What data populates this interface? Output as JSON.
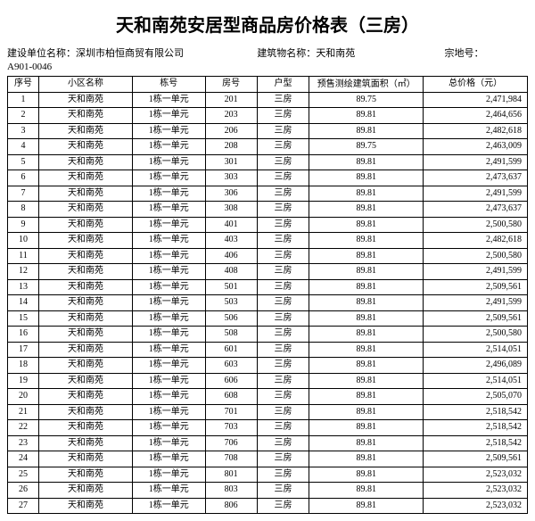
{
  "title": "天和南苑安居型商品房价格表（三房）",
  "meta": {
    "dev_label": "建设单位名称：",
    "dev_value": "深圳市柏恒商贸有限公司",
    "bldg_label": "建筑物名称：",
    "bldg_value": "天和南苑",
    "parcel_label": "宗地号：",
    "parcel_code": "A901-0046"
  },
  "columns": {
    "idx": "序号",
    "community": "小区名称",
    "building": "栋号",
    "room": "房号",
    "type": "户型",
    "area": "预售测绘建筑面积（㎡）",
    "price": "总价格（元）"
  },
  "rows": [
    {
      "idx": "1",
      "community": "天和南苑",
      "building": "1栋一单元",
      "room": "201",
      "type": "三房",
      "area": "89.75",
      "price": "2,471,984"
    },
    {
      "idx": "2",
      "community": "天和南苑",
      "building": "1栋一单元",
      "room": "203",
      "type": "三房",
      "area": "89.81",
      "price": "2,464,656"
    },
    {
      "idx": "3",
      "community": "天和南苑",
      "building": "1栋一单元",
      "room": "206",
      "type": "三房",
      "area": "89.81",
      "price": "2,482,618"
    },
    {
      "idx": "4",
      "community": "天和南苑",
      "building": "1栋一单元",
      "room": "208",
      "type": "三房",
      "area": "89.75",
      "price": "2,463,009"
    },
    {
      "idx": "5",
      "community": "天和南苑",
      "building": "1栋一单元",
      "room": "301",
      "type": "三房",
      "area": "89.81",
      "price": "2,491,599"
    },
    {
      "idx": "6",
      "community": "天和南苑",
      "building": "1栋一单元",
      "room": "303",
      "type": "三房",
      "area": "89.81",
      "price": "2,473,637"
    },
    {
      "idx": "7",
      "community": "天和南苑",
      "building": "1栋一单元",
      "room": "306",
      "type": "三房",
      "area": "89.81",
      "price": "2,491,599"
    },
    {
      "idx": "8",
      "community": "天和南苑",
      "building": "1栋一单元",
      "room": "308",
      "type": "三房",
      "area": "89.81",
      "price": "2,473,637"
    },
    {
      "idx": "9",
      "community": "天和南苑",
      "building": "1栋一单元",
      "room": "401",
      "type": "三房",
      "area": "89.81",
      "price": "2,500,580"
    },
    {
      "idx": "10",
      "community": "天和南苑",
      "building": "1栋一单元",
      "room": "403",
      "type": "三房",
      "area": "89.81",
      "price": "2,482,618"
    },
    {
      "idx": "11",
      "community": "天和南苑",
      "building": "1栋一单元",
      "room": "406",
      "type": "三房",
      "area": "89.81",
      "price": "2,500,580"
    },
    {
      "idx": "12",
      "community": "天和南苑",
      "building": "1栋一单元",
      "room": "408",
      "type": "三房",
      "area": "89.81",
      "price": "2,491,599"
    },
    {
      "idx": "13",
      "community": "天和南苑",
      "building": "1栋一单元",
      "room": "501",
      "type": "三房",
      "area": "89.81",
      "price": "2,509,561"
    },
    {
      "idx": "14",
      "community": "天和南苑",
      "building": "1栋一单元",
      "room": "503",
      "type": "三房",
      "area": "89.81",
      "price": "2,491,599"
    },
    {
      "idx": "15",
      "community": "天和南苑",
      "building": "1栋一单元",
      "room": "506",
      "type": "三房",
      "area": "89.81",
      "price": "2,509,561"
    },
    {
      "idx": "16",
      "community": "天和南苑",
      "building": "1栋一单元",
      "room": "508",
      "type": "三房",
      "area": "89.81",
      "price": "2,500,580"
    },
    {
      "idx": "17",
      "community": "天和南苑",
      "building": "1栋一单元",
      "room": "601",
      "type": "三房",
      "area": "89.81",
      "price": "2,514,051"
    },
    {
      "idx": "18",
      "community": "天和南苑",
      "building": "1栋一单元",
      "room": "603",
      "type": "三房",
      "area": "89.81",
      "price": "2,496,089"
    },
    {
      "idx": "19",
      "community": "天和南苑",
      "building": "1栋一单元",
      "room": "606",
      "type": "三房",
      "area": "89.81",
      "price": "2,514,051"
    },
    {
      "idx": "20",
      "community": "天和南苑",
      "building": "1栋一单元",
      "room": "608",
      "type": "三房",
      "area": "89.81",
      "price": "2,505,070"
    },
    {
      "idx": "21",
      "community": "天和南苑",
      "building": "1栋一单元",
      "room": "701",
      "type": "三房",
      "area": "89.81",
      "price": "2,518,542"
    },
    {
      "idx": "22",
      "community": "天和南苑",
      "building": "1栋一单元",
      "room": "703",
      "type": "三房",
      "area": "89.81",
      "price": "2,518,542"
    },
    {
      "idx": "23",
      "community": "天和南苑",
      "building": "1栋一单元",
      "room": "706",
      "type": "三房",
      "area": "89.81",
      "price": "2,518,542"
    },
    {
      "idx": "24",
      "community": "天和南苑",
      "building": "1栋一单元",
      "room": "708",
      "type": "三房",
      "area": "89.81",
      "price": "2,509,561"
    },
    {
      "idx": "25",
      "community": "天和南苑",
      "building": "1栋一单元",
      "room": "801",
      "type": "三房",
      "area": "89.81",
      "price": "2,523,032"
    },
    {
      "idx": "26",
      "community": "天和南苑",
      "building": "1栋一单元",
      "room": "803",
      "type": "三房",
      "area": "89.81",
      "price": "2,523,032"
    },
    {
      "idx": "27",
      "community": "天和南苑",
      "building": "1栋一单元",
      "room": "806",
      "type": "三房",
      "area": "89.81",
      "price": "2,523,032"
    }
  ]
}
